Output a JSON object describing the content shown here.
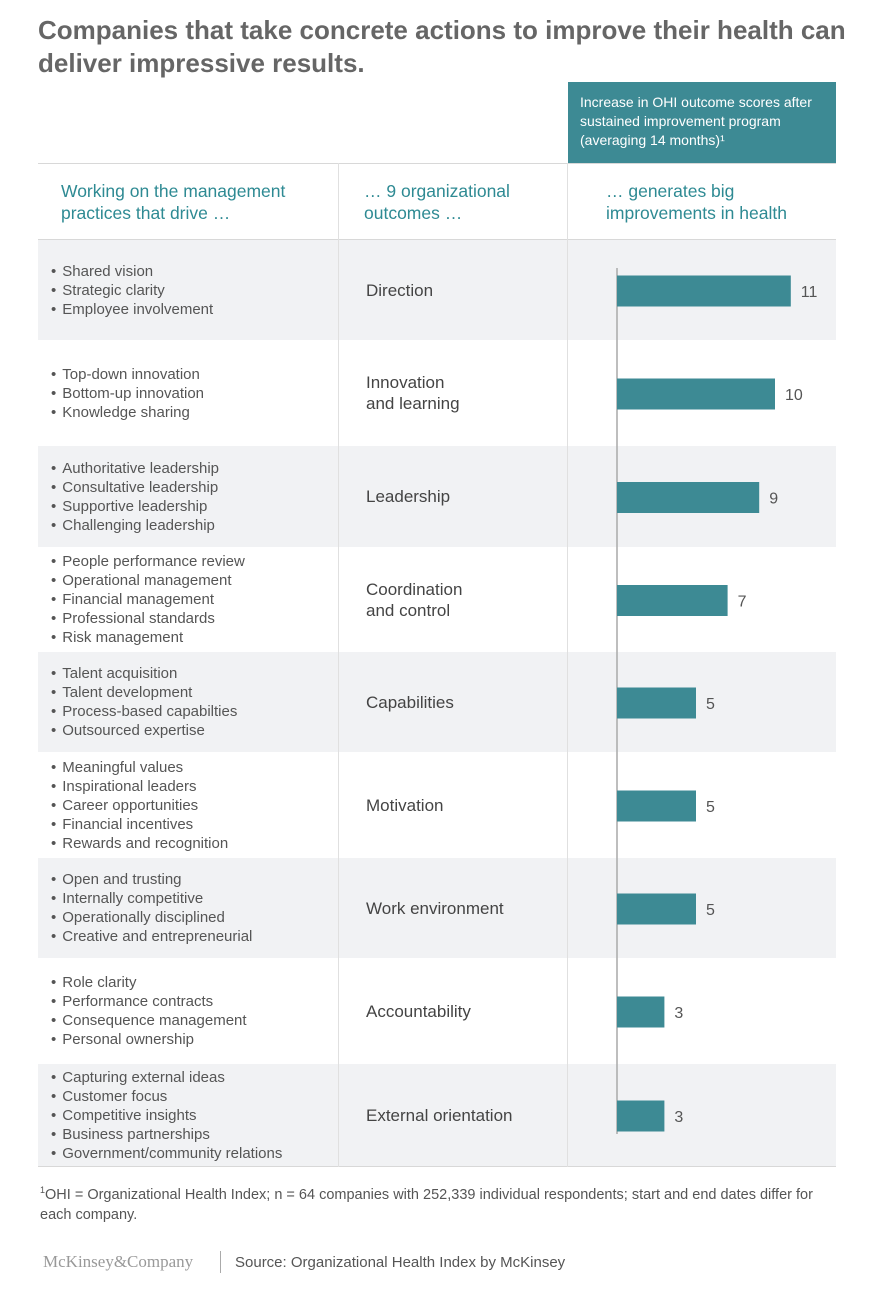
{
  "title": "Companies that take concrete actions to improve their health can deliver impressive results.",
  "callout": "Increase in OHI outcome scores after sustained improvement program (averaging 14 months)¹",
  "column_headers": {
    "practices": "Working on the management practices that drive …",
    "outcomes": "… 9 organizational outcomes …",
    "improvements": "… generates big improvements in health"
  },
  "rows": [
    {
      "outcome": "Direction",
      "value": "11",
      "practices": [
        "Shared vision",
        "Strategic clarity",
        "Employee involvement"
      ]
    },
    {
      "outcome": "Innovation\nand learning",
      "value": "10",
      "practices": [
        "Top-down innovation",
        "Bottom-up innovation",
        "Knowledge sharing"
      ]
    },
    {
      "outcome": "Leadership",
      "value": "9",
      "practices": [
        "Authoritative leadership",
        "Consultative leadership",
        "Supportive leadership",
        "Challenging leadership"
      ]
    },
    {
      "outcome": "Coordination\nand control",
      "value": "7",
      "practices": [
        "People performance review",
        "Operational management",
        "Financial management",
        "Professional standards",
        "Risk management"
      ]
    },
    {
      "outcome": "Capabilities",
      "value": "5",
      "practices": [
        "Talent acquisition",
        "Talent development",
        "Process-based capabilties",
        "Outsourced expertise"
      ]
    },
    {
      "outcome": "Motivation",
      "value": "5",
      "practices": [
        "Meaningful values",
        "Inspirational leaders",
        "Career opportunities",
        "Financial incentives",
        "Rewards and recognition"
      ]
    },
    {
      "outcome": "Work environment",
      "value": "5",
      "practices": [
        "Open and trusting",
        "Internally competitive",
        "Operationally disciplined",
        "Creative and entrepreneurial"
      ]
    },
    {
      "outcome": "Accountability",
      "value": "3",
      "practices": [
        "Role clarity",
        "Performance contracts",
        "Consequence management",
        "Personal ownership"
      ]
    },
    {
      "outcome": "External orientation",
      "value": "3",
      "practices": [
        "Capturing external ideas",
        "Customer focus",
        "Competitive insights",
        "Business partnerships",
        "Government/community relations"
      ]
    }
  ],
  "chart_data": {
    "type": "bar",
    "orientation": "horizontal",
    "title": "Increase in OHI outcome scores after sustained improvement program (averaging 14 months)¹",
    "categories": [
      "Direction",
      "Innovation and learning",
      "Leadership",
      "Coordination and control",
      "Capabilities",
      "Motivation",
      "Work environment",
      "Accountability",
      "External orientation"
    ],
    "values": [
      11,
      10,
      9,
      7,
      5,
      5,
      5,
      3,
      3
    ],
    "xlim": [
      0,
      11
    ],
    "grid": false,
    "bar_color": "#3d8a94"
  },
  "footnote": {
    "marker": "1",
    "text": "OHI = Organizational Health Index; n = 64 companies with 252,339 individual respondents; start and end dates differ for each company."
  },
  "brand": "McKinsey&Company",
  "source": "Source: Organizational Health Index by McKinsey",
  "colors": {
    "accent": "#3d8a94",
    "header_text": "#2e8a93",
    "title": "#666666",
    "row_shade": "#f1f2f4"
  }
}
